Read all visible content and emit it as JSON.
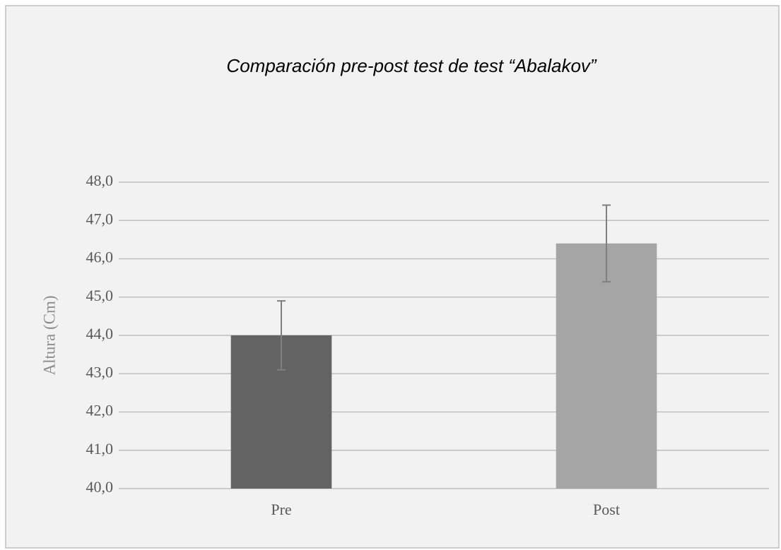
{
  "chart_data": {
    "type": "bar",
    "title": "Comparación pre-post test de test “Abalakov”",
    "y_label": "Altura  (Cm)",
    "categories": [
      "Pre",
      "Post"
    ],
    "values": [
      44.0,
      46.4
    ],
    "errors": [
      0.9,
      1.0
    ],
    "colors": [
      "#636363",
      "#a5a5a5"
    ],
    "error_color": "#7f7f7f",
    "ylim": [
      40,
      48
    ],
    "yticks": [
      {
        "value": 40,
        "label": "40,0"
      },
      {
        "value": 41,
        "label": "41,0"
      },
      {
        "value": 42,
        "label": "42,0"
      },
      {
        "value": 43,
        "label": "43,0"
      },
      {
        "value": 44,
        "label": "44,0"
      },
      {
        "value": 45,
        "label": "45,0"
      },
      {
        "value": 46,
        "label": "46,0"
      },
      {
        "value": 47,
        "label": "47,0"
      },
      {
        "value": 48,
        "label": "48,0"
      }
    ],
    "grid": true
  }
}
